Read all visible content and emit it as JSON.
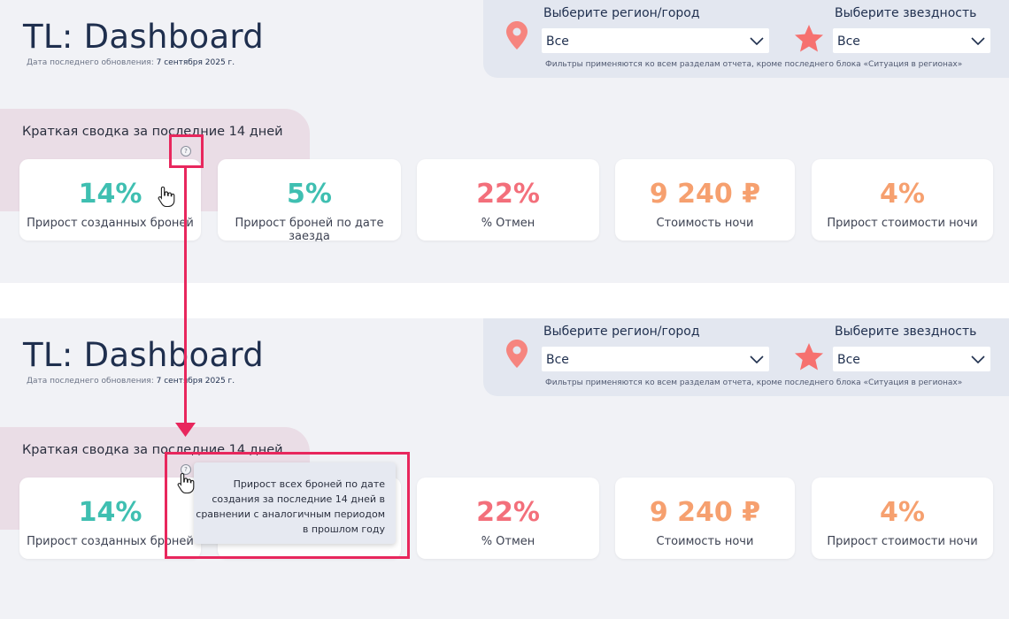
{
  "dashboard": {
    "title": "TL: Dashboard",
    "updated_label": "Дата последнего обновления:",
    "updated_date": "7 сентября 2025 г."
  },
  "filters": {
    "region_label": "Выберите регион/город",
    "region_value": "Все",
    "stars_label": "Выберите звездность",
    "stars_value": "Все",
    "note": "Фильтры применяются ко всем разделам отчета, кроме последнего блока «Ситуация в регионах»",
    "pin_icon": "map-pin-icon",
    "star_icon": "star-icon"
  },
  "summary": {
    "title": "Краткая сводка за последние 14 дней",
    "help_icon": "?",
    "cards": [
      {
        "value": "14%",
        "label": "Прирост созданных броней",
        "color": "#3fbfb1"
      },
      {
        "value": "5%",
        "label": "Прирост броней по дате заезда",
        "color": "#3fbfb1"
      },
      {
        "value": "22%",
        "label": "% Отмен",
        "color": "#f36f7b"
      },
      {
        "value": "9 240 ₽",
        "label": "Стоимость ночи",
        "color": "#f6a06f"
      },
      {
        "value": "4%",
        "label": "Прирост стоимости ночи",
        "color": "#f6a06f"
      }
    ]
  },
  "tooltip": {
    "text": "Прирост всех броней по дате создания за последние 14 дней в сравнении с аналогичным периодом в прошлом году"
  },
  "colors": {
    "accent_highlight": "#e8275d",
    "panel_bg": "#f1f2f6",
    "filter_bg": "#e3e7f0",
    "teal": "#3fbfb1",
    "red": "#f36f7b",
    "orange": "#f6a06f"
  }
}
